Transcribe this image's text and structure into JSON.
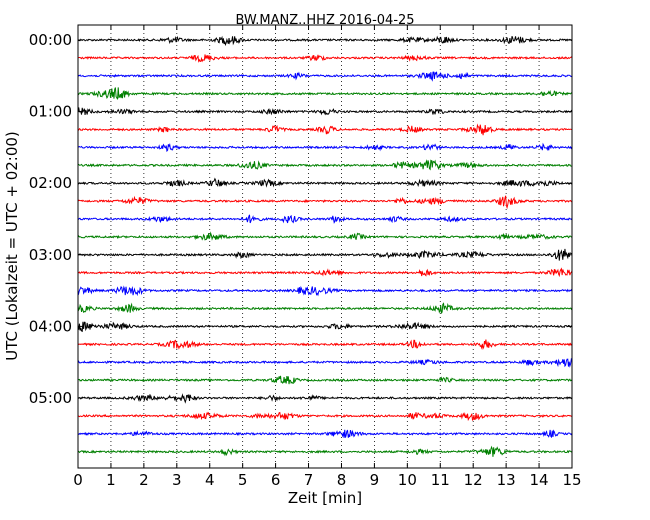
{
  "chart_data": {
    "type": "line",
    "title": "BW.MANZ..HHZ 2016-04-25",
    "xlabel": "Zeit  [min]",
    "ylabel": "UTC (Lokalzeit = UTC + 02:00)",
    "xlim": [
      0,
      15
    ],
    "x_ticks": [
      "0",
      "1",
      "2",
      "3",
      "4",
      "5",
      "6",
      "7",
      "8",
      "9",
      "10",
      "11",
      "12",
      "13",
      "14",
      "15"
    ],
    "y_ticks": [
      "00:00",
      "01:00",
      "02:00",
      "03:00",
      "04:00",
      "05:00"
    ],
    "row_interval_minutes": 15,
    "row_colors": [
      "#000000",
      "#ff0000",
      "#0000ff",
      "#008000"
    ],
    "rows": [
      {
        "start": "00:00"
      },
      {
        "start": "00:15"
      },
      {
        "start": "00:30"
      },
      {
        "start": "00:45"
      },
      {
        "start": "01:00"
      },
      {
        "start": "01:15"
      },
      {
        "start": "01:30"
      },
      {
        "start": "01:45"
      },
      {
        "start": "02:00"
      },
      {
        "start": "02:15"
      },
      {
        "start": "02:30"
      },
      {
        "start": "02:45"
      },
      {
        "start": "03:00"
      },
      {
        "start": "03:15"
      },
      {
        "start": "03:30"
      },
      {
        "start": "03:45"
      },
      {
        "start": "04:00"
      },
      {
        "start": "04:15"
      },
      {
        "start": "04:30"
      },
      {
        "start": "04:45"
      },
      {
        "start": "05:00"
      },
      {
        "start": "05:15"
      },
      {
        "start": "05:30"
      },
      {
        "start": "05:45"
      }
    ],
    "grid": "vertical-dotted"
  }
}
